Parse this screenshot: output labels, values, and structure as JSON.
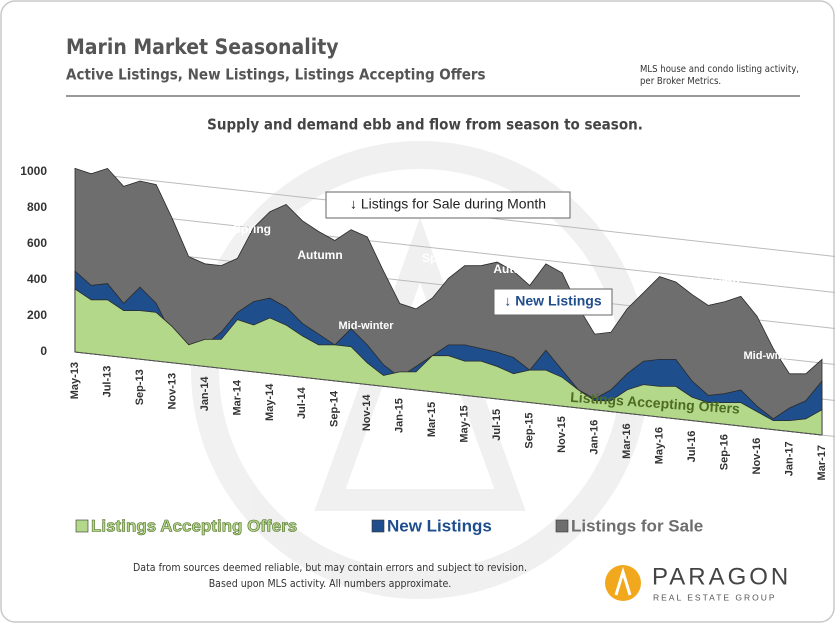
{
  "chart_data": {
    "type": "area",
    "title": "Marin Market Seasonality",
    "subtitle": "Active Listings, New Listings, Listings Accepting Offers",
    "source_note": "MLS house and condo listing activity, per Broker Metrics.",
    "chart_title": "Supply and demand ebb and flow from season to season.",
    "footer": [
      "Data from sources deemed reliable, but may contain errors and subject to revision.",
      "Based upon MLS activity. All numbers approximate."
    ],
    "logo": {
      "name": "PARAGON",
      "tagline": "REAL ESTATE GROUP"
    },
    "annotations": [
      "Spring",
      "Autumn",
      "Mid-winter",
      "Spring",
      "Autumn",
      "Spring",
      "Autumn",
      "Mid-winter",
      "↓ Listings for Sale during Month",
      "↓ New Listings",
      "Listings Accepting Offers"
    ],
    "categories": [
      "May-13",
      null,
      "Jul-13",
      null,
      "Sep-13",
      null,
      "Nov-13",
      null,
      "Jan-14",
      null,
      "Mar-14",
      null,
      "May-14",
      null,
      "Jul-14",
      null,
      "Sep-14",
      null,
      "Nov-14",
      null,
      "Jan-15",
      null,
      "Mar-15",
      null,
      "May-15",
      null,
      "Jul-15",
      null,
      "Sep-15",
      null,
      "Nov-15",
      null,
      "Jan-16",
      null,
      "Mar-16",
      null,
      "May-16",
      null,
      "Jul-16",
      null,
      "Sep-16",
      null,
      "Nov-16",
      null,
      "Jan-17",
      null,
      "Mar-17"
    ],
    "series": [
      {
        "name": "Listings Accepting Offers",
        "color": "#b3d88a",
        "values": [
          350,
          300,
          310,
          260,
          270,
          270,
          200,
          110,
          150,
          160,
          280,
          260,
          310,
          280,
          230,
          190,
          200,
          200,
          120,
          60,
          90,
          100,
          200,
          210,
          190,
          200,
          180,
          150,
          180,
          190,
          160,
          100,
          50,
          60,
          130,
          170,
          170,
          180,
          130,
          110,
          120,
          130,
          90,
          50,
          60,
          80,
          140
        ]
      },
      {
        "name": "New Listings",
        "color": "#1f4e8c",
        "values": [
          450,
          380,
          400,
          300,
          400,
          320,
          150,
          90,
          120,
          200,
          320,
          390,
          420,
          380,
          300,
          250,
          200,
          300,
          220,
          120,
          60,
          130,
          200,
          270,
          280,
          270,
          260,
          240,
          180,
          300,
          200,
          100,
          60,
          120,
          220,
          300,
          320,
          330,
          220,
          150,
          170,
          200,
          120,
          60,
          130,
          180,
          300
        ]
      },
      {
        "name": "Listings for Sale",
        "color": "#6e6e6e",
        "values": [
          1020,
          1000,
          1040,
          950,
          990,
          980,
          800,
          600,
          570,
          570,
          620,
          800,
          900,
          950,
          870,
          820,
          780,
          850,
          820,
          640,
          470,
          450,
          520,
          640,
          720,
          730,
          760,
          720,
          650,
          780,
          740,
          560,
          420,
          440,
          580,
          680,
          780,
          760,
          700,
          650,
          680,
          720,
          620,
          450,
          320,
          330,
          420
        ]
      }
    ],
    "ylim": [
      0,
      1000
    ],
    "yticks": [
      0,
      200,
      400,
      600,
      800,
      1000
    ],
    "grid": true
  }
}
